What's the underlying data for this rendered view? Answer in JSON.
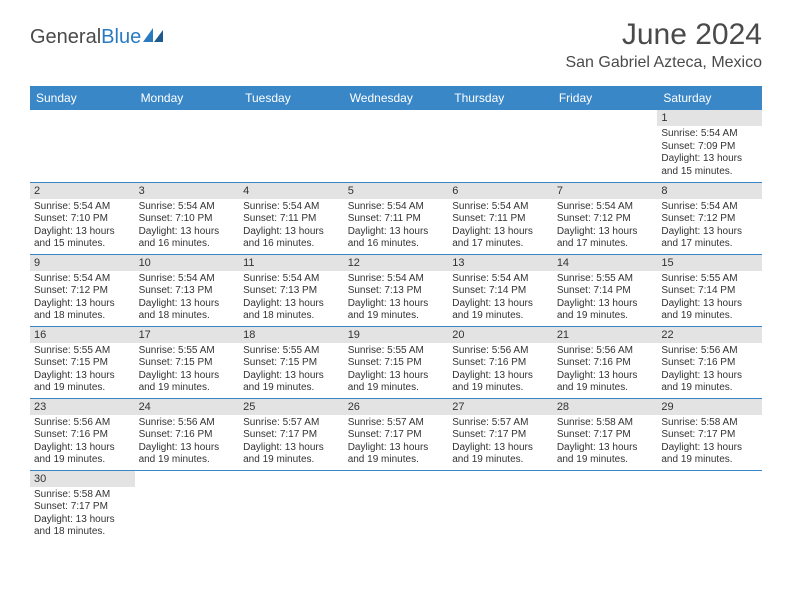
{
  "logo": {
    "general": "General",
    "blue": "Blue"
  },
  "title": "June 2024",
  "location": "San Gabriel Azteca, Mexico",
  "colors": {
    "header_bg": "#3a87c8",
    "header_text": "#ffffff",
    "daynum_bg": "#e3e3e3",
    "border": "#3a87c8",
    "logo_blue": "#2b7ac0",
    "text": "#333333"
  },
  "dayHeaders": [
    "Sunday",
    "Monday",
    "Tuesday",
    "Wednesday",
    "Thursday",
    "Friday",
    "Saturday"
  ],
  "startWeekday": 6,
  "daysInMonth": 30,
  "days": {
    "1": {
      "sunrise": "5:54 AM",
      "sunset": "7:09 PM",
      "daylight": "13 hours and 15 minutes."
    },
    "2": {
      "sunrise": "5:54 AM",
      "sunset": "7:10 PM",
      "daylight": "13 hours and 15 minutes."
    },
    "3": {
      "sunrise": "5:54 AM",
      "sunset": "7:10 PM",
      "daylight": "13 hours and 16 minutes."
    },
    "4": {
      "sunrise": "5:54 AM",
      "sunset": "7:11 PM",
      "daylight": "13 hours and 16 minutes."
    },
    "5": {
      "sunrise": "5:54 AM",
      "sunset": "7:11 PM",
      "daylight": "13 hours and 16 minutes."
    },
    "6": {
      "sunrise": "5:54 AM",
      "sunset": "7:11 PM",
      "daylight": "13 hours and 17 minutes."
    },
    "7": {
      "sunrise": "5:54 AM",
      "sunset": "7:12 PM",
      "daylight": "13 hours and 17 minutes."
    },
    "8": {
      "sunrise": "5:54 AM",
      "sunset": "7:12 PM",
      "daylight": "13 hours and 17 minutes."
    },
    "9": {
      "sunrise": "5:54 AM",
      "sunset": "7:12 PM",
      "daylight": "13 hours and 18 minutes."
    },
    "10": {
      "sunrise": "5:54 AM",
      "sunset": "7:13 PM",
      "daylight": "13 hours and 18 minutes."
    },
    "11": {
      "sunrise": "5:54 AM",
      "sunset": "7:13 PM",
      "daylight": "13 hours and 18 minutes."
    },
    "12": {
      "sunrise": "5:54 AM",
      "sunset": "7:13 PM",
      "daylight": "13 hours and 19 minutes."
    },
    "13": {
      "sunrise": "5:54 AM",
      "sunset": "7:14 PM",
      "daylight": "13 hours and 19 minutes."
    },
    "14": {
      "sunrise": "5:55 AM",
      "sunset": "7:14 PM",
      "daylight": "13 hours and 19 minutes."
    },
    "15": {
      "sunrise": "5:55 AM",
      "sunset": "7:14 PM",
      "daylight": "13 hours and 19 minutes."
    },
    "16": {
      "sunrise": "5:55 AM",
      "sunset": "7:15 PM",
      "daylight": "13 hours and 19 minutes."
    },
    "17": {
      "sunrise": "5:55 AM",
      "sunset": "7:15 PM",
      "daylight": "13 hours and 19 minutes."
    },
    "18": {
      "sunrise": "5:55 AM",
      "sunset": "7:15 PM",
      "daylight": "13 hours and 19 minutes."
    },
    "19": {
      "sunrise": "5:55 AM",
      "sunset": "7:15 PM",
      "daylight": "13 hours and 19 minutes."
    },
    "20": {
      "sunrise": "5:56 AM",
      "sunset": "7:16 PM",
      "daylight": "13 hours and 19 minutes."
    },
    "21": {
      "sunrise": "5:56 AM",
      "sunset": "7:16 PM",
      "daylight": "13 hours and 19 minutes."
    },
    "22": {
      "sunrise": "5:56 AM",
      "sunset": "7:16 PM",
      "daylight": "13 hours and 19 minutes."
    },
    "23": {
      "sunrise": "5:56 AM",
      "sunset": "7:16 PM",
      "daylight": "13 hours and 19 minutes."
    },
    "24": {
      "sunrise": "5:56 AM",
      "sunset": "7:16 PM",
      "daylight": "13 hours and 19 minutes."
    },
    "25": {
      "sunrise": "5:57 AM",
      "sunset": "7:17 PM",
      "daylight": "13 hours and 19 minutes."
    },
    "26": {
      "sunrise": "5:57 AM",
      "sunset": "7:17 PM",
      "daylight": "13 hours and 19 minutes."
    },
    "27": {
      "sunrise": "5:57 AM",
      "sunset": "7:17 PM",
      "daylight": "13 hours and 19 minutes."
    },
    "28": {
      "sunrise": "5:58 AM",
      "sunset": "7:17 PM",
      "daylight": "13 hours and 19 minutes."
    },
    "29": {
      "sunrise": "5:58 AM",
      "sunset": "7:17 PM",
      "daylight": "13 hours and 19 minutes."
    },
    "30": {
      "sunrise": "5:58 AM",
      "sunset": "7:17 PM",
      "daylight": "13 hours and 18 minutes."
    }
  },
  "labels": {
    "sunrise": "Sunrise: ",
    "sunset": "Sunset: ",
    "daylight": "Daylight: "
  }
}
